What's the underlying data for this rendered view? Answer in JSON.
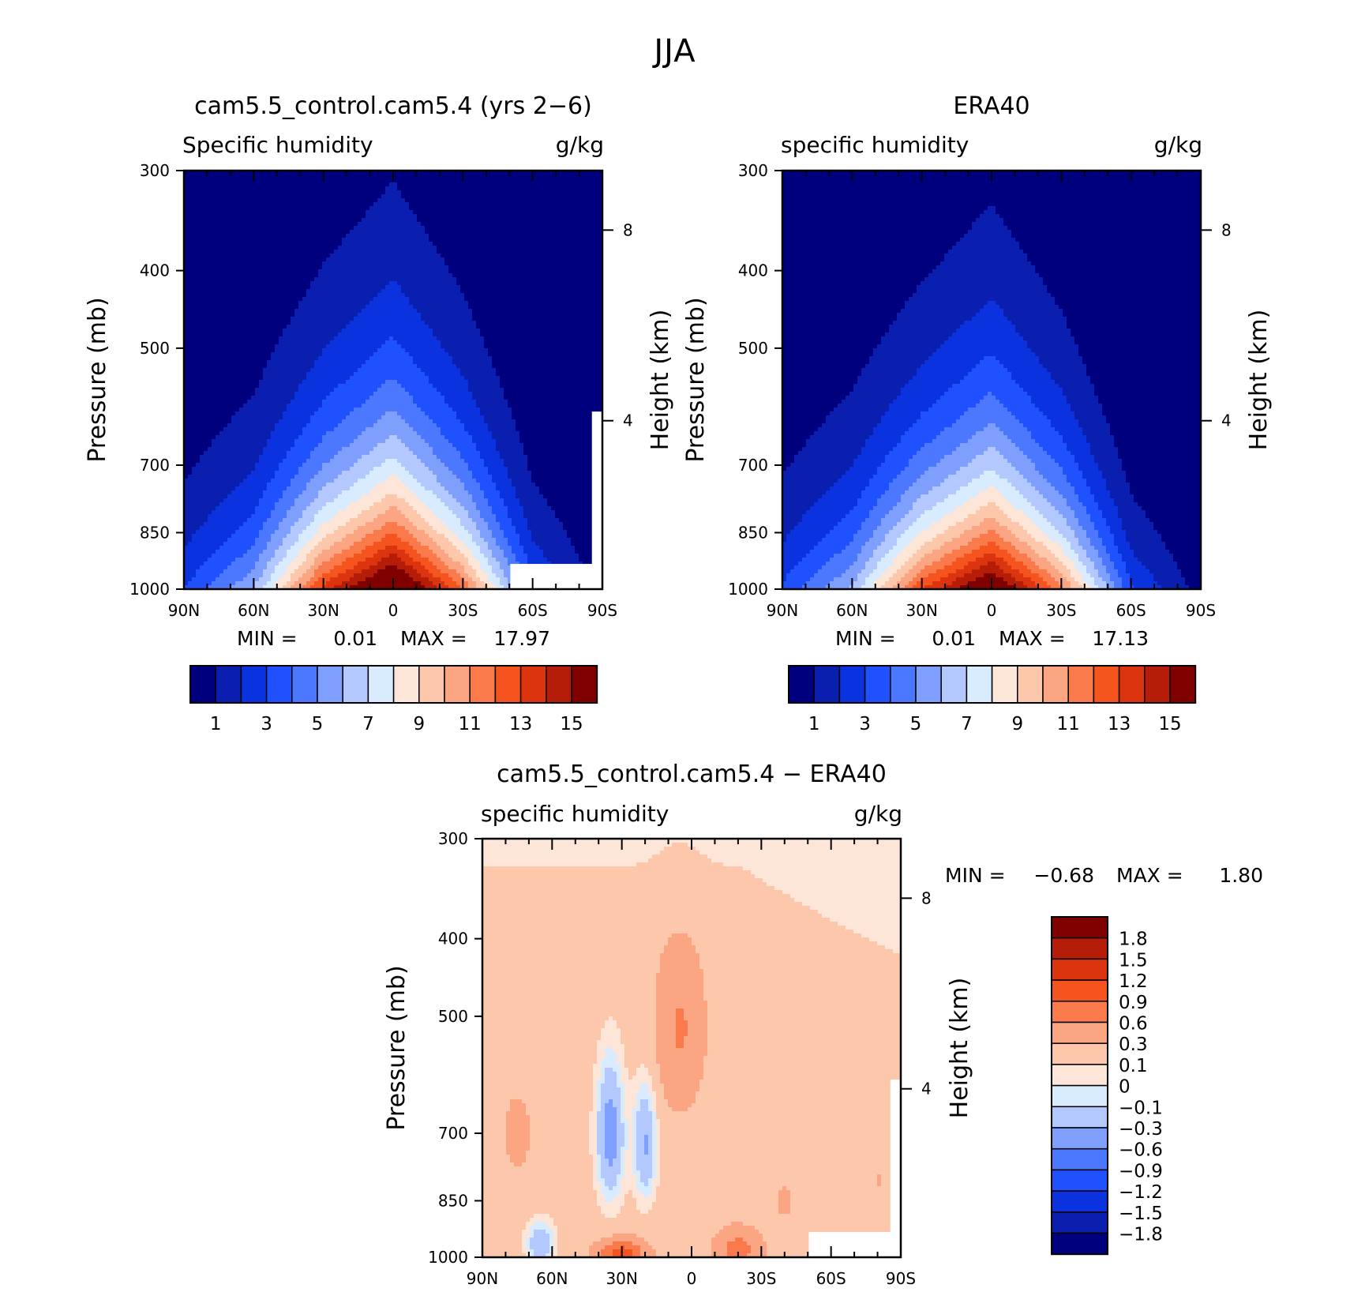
{
  "figure": {
    "title": "JJA"
  },
  "colors": {
    "abs_levels": [
      "#00007f",
      "#0a1fb0",
      "#0a32de",
      "#1f51ff",
      "#4b78ff",
      "#7f9fff",
      "#b3c8ff",
      "#d9ebff",
      "#fde6d8",
      "#fdc7ac",
      "#fca583",
      "#fa7a4c",
      "#f5541f",
      "#dd3410",
      "#b51d08",
      "#800000"
    ],
    "diff_levels": [
      "#00007f",
      "#0a1fb0",
      "#0a32de",
      "#1f51ff",
      "#4b78ff",
      "#7f9fff",
      "#b3c8ff",
      "#d9ebff",
      "#fde6d8",
      "#fdc7ac",
      "#fca583",
      "#fa7a4c",
      "#f5541f",
      "#dd3410",
      "#b51d08",
      "#800000"
    ]
  },
  "chart_data": [
    {
      "type": "heatmap",
      "title": "cam5.5_control.cam5.4 (yrs 2−6)",
      "left_label": "Specific humidity",
      "right_label": "g/kg",
      "ylabel": "Pressure (mb)",
      "ylabel_right": "Height (km)",
      "x_ticks": [
        "90N",
        "60N",
        "30N",
        "0",
        "30S",
        "60S",
        "90S"
      ],
      "y_ticks": [
        "300",
        "400",
        "500",
        "700",
        "850",
        "1000"
      ],
      "y_right_ticks": [
        "8",
        "4"
      ],
      "y_log_scale": true,
      "ylim": [
        1000,
        300
      ],
      "xlim": [
        90,
        -90
      ],
      "stats": {
        "min_label": "MIN =",
        "min": "0.01",
        "max_label": "MAX =",
        "max": "17.97"
      },
      "colorbar_labels": [
        "1",
        "3",
        "5",
        "7",
        "9",
        "11",
        "13",
        "15"
      ],
      "field": {
        "lats": [
          90,
          60,
          30,
          0,
          -30,
          -60,
          -90
        ],
        "profile": {
          "q0": [
            3.0,
            6.0,
            13.5,
            18.0,
            12.0,
            3.5,
            0.6
          ],
          "H": [
            1.8,
            2.0,
            2.3,
            2.6,
            2.2,
            1.6,
            1.2
          ]
        },
        "masked_surface": [
          [
            52,
            1000
          ],
          [
            52,
            930
          ],
          [
            88,
            930
          ],
          [
            88,
            600
          ]
        ]
      }
    },
    {
      "type": "heatmap",
      "title": "ERA40",
      "left_label": "specific humidity",
      "right_label": "g/kg",
      "ylabel": "Pressure (mb)",
      "ylabel_right": "Height (km)",
      "x_ticks": [
        "90N",
        "60N",
        "30N",
        "0",
        "30S",
        "60S",
        "90S"
      ],
      "y_ticks": [
        "300",
        "400",
        "500",
        "700",
        "850",
        "1000"
      ],
      "y_right_ticks": [
        "8",
        "4"
      ],
      "y_log_scale": true,
      "ylim": [
        1000,
        300
      ],
      "xlim": [
        90,
        -90
      ],
      "stats": {
        "min_label": "MIN =",
        "min": "0.01",
        "max_label": "MAX =",
        "max": "17.13"
      },
      "colorbar_labels": [
        "1",
        "3",
        "5",
        "7",
        "9",
        "11",
        "13",
        "15"
      ],
      "field": {
        "lats": [
          90,
          60,
          30,
          0,
          -30,
          -60,
          -90
        ],
        "profile": {
          "q0": [
            3.2,
            6.2,
            13.0,
            17.1,
            11.5,
            3.2,
            0.5
          ],
          "H": [
            1.8,
            2.0,
            2.2,
            2.5,
            2.1,
            1.5,
            1.1
          ]
        }
      }
    },
    {
      "type": "heatmap",
      "title": "cam5.5_control.cam5.4 − ERA40",
      "left_label": "specific humidity",
      "right_label": "g/kg",
      "ylabel": "Pressure (mb)",
      "ylabel_right": "Height (km)",
      "x_ticks": [
        "90N",
        "60N",
        "30N",
        "0",
        "30S",
        "60S",
        "90S"
      ],
      "y_ticks": [
        "300",
        "400",
        "500",
        "700",
        "850",
        "1000"
      ],
      "y_right_ticks": [
        "8",
        "4"
      ],
      "y_log_scale": true,
      "ylim": [
        1000,
        300
      ],
      "xlim": [
        90,
        -90
      ],
      "stats": {
        "min_label": "MIN =",
        "min": "−0.68",
        "max_label": "MAX =",
        "max": "1.80"
      },
      "colorbar_labels": [
        "1.8",
        "1.5",
        "1.2",
        "0.9",
        "0.6",
        "0.3",
        "0.1",
        "0",
        "−0.1",
        "−0.3",
        "−0.6",
        "−0.9",
        "−1.2",
        "−1.5",
        "−1.8"
      ]
    }
  ]
}
